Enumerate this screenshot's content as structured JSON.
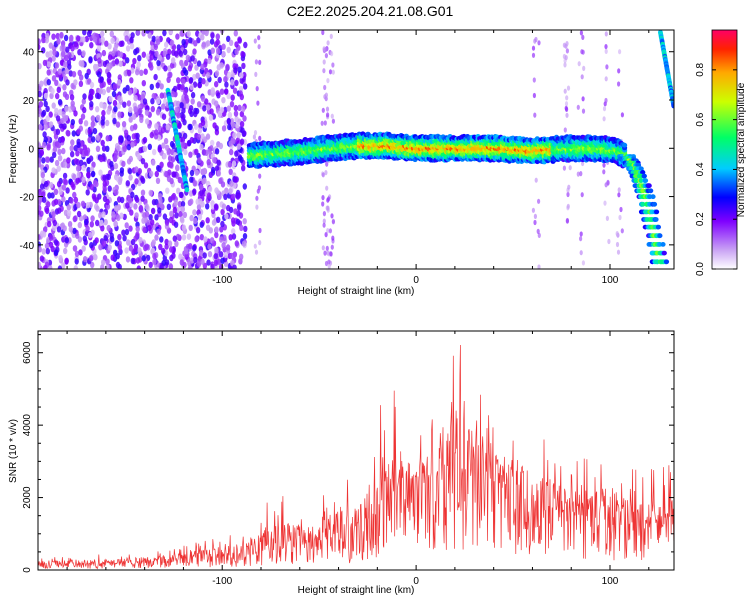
{
  "title": "C2E2.2025.204.21.08.G01",
  "chart_data": [
    {
      "type": "heatmap",
      "xlabel": "Height of straight line (km)",
      "ylabel": "Frequency (Hz)",
      "xlim": [
        -195,
        133
      ],
      "ylim": [
        -50,
        49
      ],
      "xticks": [
        -100,
        0,
        100
      ],
      "yticks": [
        -40,
        -20,
        0,
        20,
        40
      ],
      "colorbar": {
        "label": "Normalized spectral amplitude",
        "range": [
          0,
          0.96
        ],
        "ticks": [
          0.0,
          0.2,
          0.4,
          0.6,
          0.8
        ]
      },
      "main_ridge": {
        "x": [
          -86,
          -70,
          -55,
          -45,
          -30,
          -15,
          0,
          20,
          40,
          60,
          80,
          95,
          103,
          108,
          112,
          115,
          118,
          120,
          122,
          124,
          126
        ],
        "y": [
          -3,
          -2,
          -1,
          0,
          1,
          1,
          0,
          0,
          0,
          -1,
          0,
          0,
          -1,
          -3,
          -7,
          -12,
          -19,
          -26,
          -33,
          -41,
          -49
        ]
      },
      "secondary_streaks": [
        {
          "x": [
            -128,
            -118
          ],
          "y": [
            24,
            -18
          ]
        },
        {
          "x": [
            126,
            133
          ],
          "y": [
            48,
            17
          ]
        }
      ]
    },
    {
      "type": "line",
      "xlabel": "Height of straight line (km)",
      "ylabel": "SNR (10 * v/v)",
      "xlim": [
        -195,
        133
      ],
      "ylim": [
        0,
        6600
      ],
      "xticks": [
        -100,
        0,
        100
      ],
      "yticks": [
        0,
        2000,
        4000,
        6000
      ],
      "color": "#ee3333",
      "envelope": {
        "x": [
          -195,
          -150,
          -120,
          -100,
          -90,
          -80,
          -70,
          -60,
          -50,
          -40,
          -30,
          -25,
          -20,
          -15,
          -10,
          -5,
          0,
          10,
          20,
          30,
          40,
          50,
          60,
          70,
          80,
          90,
          100,
          110,
          120,
          133
        ],
        "mean": [
          150,
          200,
          300,
          400,
          450,
          600,
          750,
          800,
          800,
          900,
          900,
          1300,
          1800,
          1900,
          2200,
          2300,
          2300,
          2500,
          2900,
          2700,
          2500,
          2200,
          1900,
          1600,
          1500,
          1450,
          1300,
          1250,
          1200,
          1200
        ],
        "max": [
          400,
          450,
          700,
          1000,
          1100,
          1900,
          2100,
          1800,
          1900,
          2800,
          2700,
          3500,
          5600,
          4200,
          5500,
          3800,
          4000,
          4200,
          6600,
          5400,
          4700,
          4300,
          3700,
          3600,
          3100,
          3200,
          3700,
          2900,
          2900,
          3100
        ]
      }
    }
  ]
}
